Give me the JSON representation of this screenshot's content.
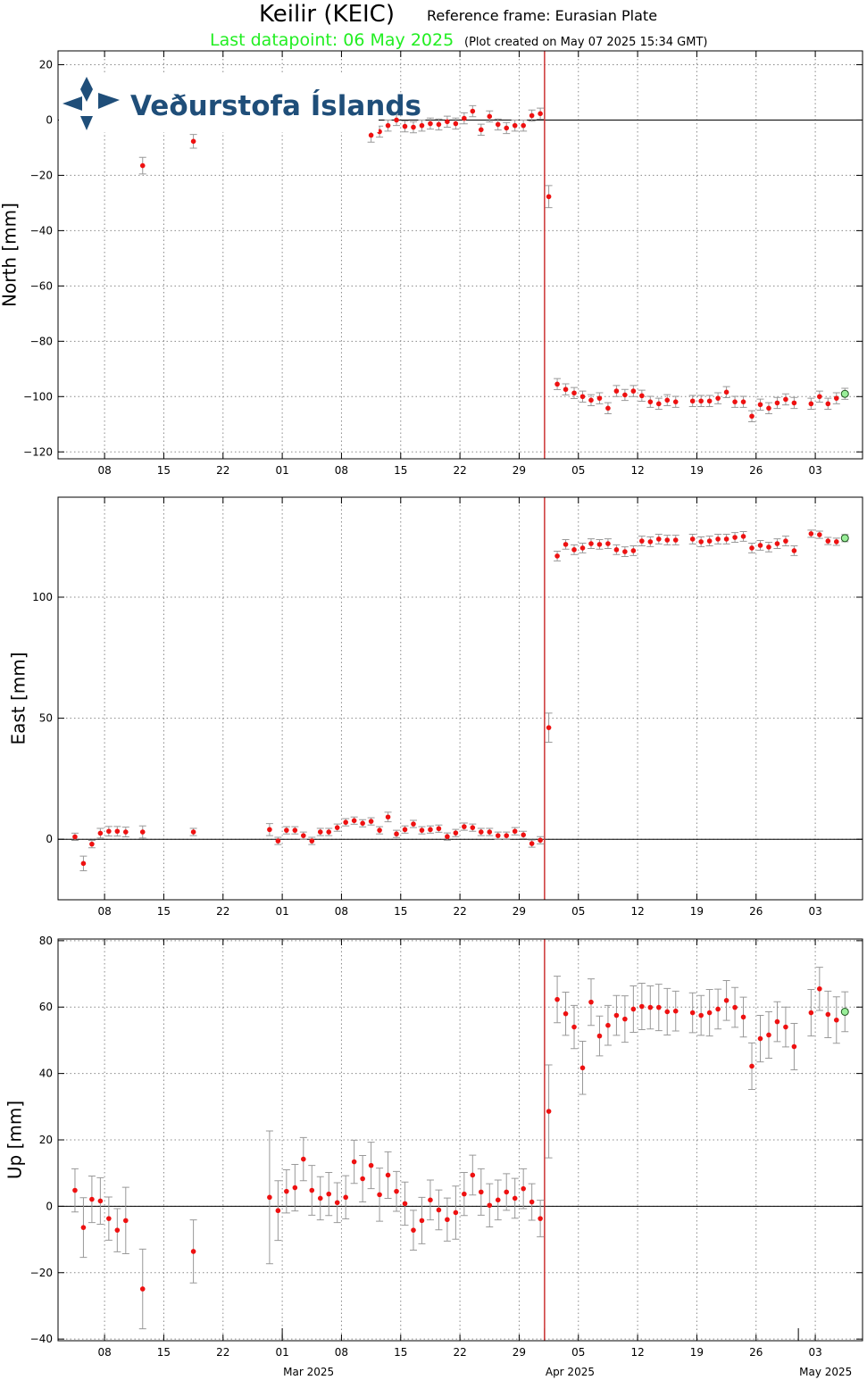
{
  "header": {
    "title": "Keilir (KEIC)",
    "subtitle": "Reference frame: Eurasian Plate",
    "last_datapoint": "Last datapoint: 06 May 2025",
    "created": "(Plot created on May 07 2025 15:34 GMT)",
    "logo": "Veðurstofa Íslands"
  },
  "chart_data": [
    {
      "type": "scatter",
      "ylabel": "North [mm]",
      "color": "#ee1111",
      "last_color": "#99ee99",
      "error_color": "#999999",
      "grid": true,
      "zero_line": true,
      "event_line": {
        "x": "2025-04-01",
        "color": "#cc3333"
      },
      "xlim": [
        "2025-02-02T12:00",
        "2025-05-08T14:00"
      ],
      "ylim": [
        -122.5,
        25
      ],
      "yticks": [
        {
          "value": -120,
          "label": "−120"
        },
        {
          "value": -100,
          "label": "−100"
        },
        {
          "value": -80,
          "label": "−80"
        },
        {
          "value": -60,
          "label": "−60"
        },
        {
          "value": -40,
          "label": "−40"
        },
        {
          "value": -20,
          "label": "−20"
        },
        0,
        20
      ],
      "xticks": [
        {
          "value": "2025-02-08",
          "label": "08"
        },
        {
          "value": "2025-02-15",
          "label": "15"
        },
        {
          "value": "2025-02-22",
          "label": "22"
        },
        {
          "value": "2025-03-01",
          "label": "01"
        },
        {
          "value": "2025-03-08",
          "label": "08"
        },
        {
          "value": "2025-03-15",
          "label": "15"
        },
        {
          "value": "2025-03-22",
          "label": "22"
        },
        {
          "value": "2025-03-29",
          "label": "29"
        },
        {
          "value": "2025-04-05",
          "label": "05"
        },
        {
          "value": "2025-04-12",
          "label": "12"
        },
        {
          "value": "2025-04-19",
          "label": "19"
        },
        {
          "value": "2025-04-26",
          "label": "26"
        },
        {
          "value": "2025-05-03",
          "label": "03"
        }
      ],
      "x": [
        "2025-02-12",
        "2025-02-18",
        "2025-03-11",
        "2025-03-12",
        "2025-03-13",
        "2025-03-14",
        "2025-03-15",
        "2025-03-16",
        "2025-03-17",
        "2025-03-18",
        "2025-03-19",
        "2025-03-20",
        "2025-03-21",
        "2025-03-22",
        "2025-03-23",
        "2025-03-24",
        "2025-03-25",
        "2025-03-26",
        "2025-03-27",
        "2025-03-28",
        "2025-03-29",
        "2025-03-30",
        "2025-03-31",
        "2025-04-01",
        "2025-04-02",
        "2025-04-03",
        "2025-04-04",
        "2025-04-05",
        "2025-04-06",
        "2025-04-07",
        "2025-04-08",
        "2025-04-09",
        "2025-04-10",
        "2025-04-11",
        "2025-04-12",
        "2025-04-13",
        "2025-04-14",
        "2025-04-15",
        "2025-04-16",
        "2025-04-18",
        "2025-04-19",
        "2025-04-20",
        "2025-04-21",
        "2025-04-22",
        "2025-04-23",
        "2025-04-24",
        "2025-04-25",
        "2025-04-26",
        "2025-04-27",
        "2025-04-28",
        "2025-04-29",
        "2025-04-30",
        "2025-05-02",
        "2025-05-03",
        "2025-05-04",
        "2025-05-05",
        "2025-05-06"
      ],
      "values": [
        -16.5,
        -7.7,
        -5.5,
        -4.2,
        -2,
        0,
        -2.3,
        -2.6,
        -2,
        -1.3,
        -1.6,
        -0.6,
        -1.3,
        0.6,
        3.2,
        -3.5,
        1.3,
        -1.6,
        -2.9,
        -2,
        -2,
        1.6,
        2.3,
        -27.7,
        -95.5,
        -97.4,
        -98.7,
        -100,
        -101.3,
        -100.6,
        -104.2,
        -98,
        -99.4,
        -98,
        -99.7,
        -101.9,
        -102.6,
        -101.3,
        -101.9,
        -101.6,
        -101.6,
        -101.6,
        -100.6,
        -98.4,
        -101.9,
        -101.9,
        -107.1,
        -102.9,
        -104.2,
        -102.3,
        -101,
        -102.3,
        -102.6,
        -100,
        -102.6,
        -100.6,
        -99
      ],
      "errors": [
        3,
        2.5,
        2.5,
        2,
        2,
        2,
        2,
        2,
        2,
        2,
        2,
        2,
        2,
        2,
        2,
        2,
        2,
        2,
        2,
        2,
        2,
        2,
        2,
        4,
        2,
        2,
        2,
        2,
        2,
        2,
        2,
        2,
        2,
        2,
        2,
        2,
        2,
        2,
        2,
        2,
        2,
        2,
        2,
        2,
        2,
        2,
        2,
        2,
        2,
        2,
        2,
        2,
        2,
        2,
        2,
        2,
        2
      ]
    },
    {
      "type": "scatter",
      "ylabel": "East [mm]",
      "color": "#ee1111",
      "last_color": "#99ee99",
      "error_color": "#999999",
      "grid": true,
      "zero_line": true,
      "event_line": {
        "x": "2025-04-01",
        "color": "#cc3333"
      },
      "xlim": [
        "2025-02-02T12:00",
        "2025-05-08T14:00"
      ],
      "ylim": [
        -25,
        141.3
      ],
      "yticks": [
        0,
        50,
        100
      ],
      "xticks": [
        {
          "value": "2025-02-08",
          "label": "08"
        },
        {
          "value": "2025-02-15",
          "label": "15"
        },
        {
          "value": "2025-02-22",
          "label": "22"
        },
        {
          "value": "2025-03-01",
          "label": "01"
        },
        {
          "value": "2025-03-08",
          "label": "08"
        },
        {
          "value": "2025-03-15",
          "label": "15"
        },
        {
          "value": "2025-03-22",
          "label": "22"
        },
        {
          "value": "2025-03-29",
          "label": "29"
        },
        {
          "value": "2025-04-05",
          "label": "05"
        },
        {
          "value": "2025-04-12",
          "label": "12"
        },
        {
          "value": "2025-04-19",
          "label": "19"
        },
        {
          "value": "2025-04-26",
          "label": "26"
        },
        {
          "value": "2025-05-03",
          "label": "03"
        }
      ],
      "x": [
        "2025-02-04",
        "2025-02-05",
        "2025-02-06",
        "2025-02-07",
        "2025-02-08",
        "2025-02-09",
        "2025-02-10",
        "2025-02-12",
        "2025-02-18",
        "2025-02-27",
        "2025-02-28",
        "2025-03-01",
        "2025-03-02",
        "2025-03-03",
        "2025-03-04",
        "2025-03-05",
        "2025-03-06",
        "2025-03-07",
        "2025-03-08",
        "2025-03-09",
        "2025-03-10",
        "2025-03-11",
        "2025-03-12",
        "2025-03-13",
        "2025-03-14",
        "2025-03-15",
        "2025-03-16",
        "2025-03-17",
        "2025-03-18",
        "2025-03-19",
        "2025-03-20",
        "2025-03-21",
        "2025-03-22",
        "2025-03-23",
        "2025-03-24",
        "2025-03-25",
        "2025-03-26",
        "2025-03-27",
        "2025-03-28",
        "2025-03-29",
        "2025-03-30",
        "2025-03-31",
        "2025-04-01",
        "2025-04-02",
        "2025-04-03",
        "2025-04-04",
        "2025-04-05",
        "2025-04-06",
        "2025-04-07",
        "2025-04-08",
        "2025-04-09",
        "2025-04-10",
        "2025-04-11",
        "2025-04-12",
        "2025-04-13",
        "2025-04-14",
        "2025-04-15",
        "2025-04-16",
        "2025-04-18",
        "2025-04-19",
        "2025-04-20",
        "2025-04-21",
        "2025-04-22",
        "2025-04-23",
        "2025-04-24",
        "2025-04-25",
        "2025-04-26",
        "2025-04-27",
        "2025-04-28",
        "2025-04-29",
        "2025-04-30",
        "2025-05-02",
        "2025-05-03",
        "2025-05-04",
        "2025-05-05",
        "2025-05-06"
      ],
      "values": [
        1,
        -10,
        -2,
        2.5,
        3.3,
        3.3,
        3,
        3,
        3,
        4,
        -0.7,
        3.7,
        3.7,
        1.5,
        -0.7,
        3,
        3,
        4.8,
        7,
        7.7,
        6.6,
        7.4,
        3.7,
        9.2,
        2.2,
        4,
        6.3,
        3.7,
        4,
        4.4,
        1.1,
        2.6,
        5.2,
        4.8,
        3,
        3,
        1.5,
        1.5,
        3.3,
        1.8,
        -1.8,
        -0.4,
        46.1,
        117,
        121.8,
        119.6,
        120.3,
        122.1,
        121.8,
        122.1,
        119.6,
        118.8,
        119.2,
        123.2,
        122.9,
        124,
        123.6,
        123.6,
        124,
        122.9,
        123.2,
        124,
        124,
        124.7,
        125.1,
        120.3,
        121.4,
        120.7,
        122.1,
        123.2,
        119.2,
        126.2,
        125.8,
        123.2,
        122.9,
        124.4
      ],
      "errors": [
        1.5,
        3,
        1.5,
        2,
        2,
        2,
        2,
        2.5,
        1.5,
        2.5,
        1.5,
        1.5,
        1.5,
        1.5,
        1.5,
        1.5,
        1.5,
        1.5,
        1.5,
        1.5,
        1.5,
        1.5,
        1.5,
        2,
        1.5,
        1.5,
        1.5,
        1.5,
        1.5,
        1.5,
        1.5,
        1.5,
        1.5,
        1.5,
        1.5,
        1.5,
        1.5,
        1.5,
        1.5,
        1.5,
        1.5,
        1.5,
        6,
        2,
        2,
        2,
        2,
        2,
        2,
        2,
        2,
        2,
        2,
        2,
        2,
        2,
        2,
        2,
        2,
        2,
        2,
        2,
        2,
        2,
        2,
        2,
        2,
        2,
        2,
        2,
        2,
        1.5,
        1.5,
        1.5,
        1.5,
        1.5
      ]
    },
    {
      "type": "scatter",
      "ylabel": "Up [mm]",
      "color": "#ee1111",
      "last_color": "#99ee99",
      "error_color": "#999999",
      "grid": true,
      "zero_line": true,
      "event_line": {
        "x": "2025-04-01",
        "color": "#cc3333"
      },
      "xlim": [
        "2025-02-02T12:00",
        "2025-05-08T14:00"
      ],
      "ylim": [
        -40.5,
        80.5
      ],
      "yticks": [
        {
          "value": -40,
          "label": "−40"
        },
        {
          "value": -20,
          "label": "−20"
        },
        0,
        20,
        40,
        60,
        80
      ],
      "xticks": [
        {
          "value": "2025-02-08",
          "label": "08"
        },
        {
          "value": "2025-02-15",
          "label": "15"
        },
        {
          "value": "2025-02-22",
          "label": "22"
        },
        {
          "value": "2025-03-01",
          "label": "01"
        },
        {
          "value": "2025-03-08",
          "label": "08"
        },
        {
          "value": "2025-03-15",
          "label": "15"
        },
        {
          "value": "2025-03-22",
          "label": "22"
        },
        {
          "value": "2025-03-29",
          "label": "29"
        },
        {
          "value": "2025-04-05",
          "label": "05"
        },
        {
          "value": "2025-04-12",
          "label": "12"
        },
        {
          "value": "2025-04-19",
          "label": "19"
        },
        {
          "value": "2025-04-26",
          "label": "26"
        },
        {
          "value": "2025-05-03",
          "label": "03"
        }
      ],
      "month_ticks": [
        {
          "value": "2025-03-01",
          "label": "Mar 2025"
        },
        {
          "value": "2025-04-01",
          "label": "Apr 2025"
        },
        {
          "value": "2025-05-01",
          "label": "May 2025"
        }
      ],
      "x": [
        "2025-02-04",
        "2025-02-05",
        "2025-02-06",
        "2025-02-07",
        "2025-02-08",
        "2025-02-09",
        "2025-02-10",
        "2025-02-12",
        "2025-02-18",
        "2025-02-27",
        "2025-02-28",
        "2025-03-01",
        "2025-03-02",
        "2025-03-03",
        "2025-03-04",
        "2025-03-05",
        "2025-03-06",
        "2025-03-07",
        "2025-03-08",
        "2025-03-09",
        "2025-03-10",
        "2025-03-11",
        "2025-03-12",
        "2025-03-13",
        "2025-03-14",
        "2025-03-15",
        "2025-03-16",
        "2025-03-17",
        "2025-03-18",
        "2025-03-19",
        "2025-03-20",
        "2025-03-21",
        "2025-03-22",
        "2025-03-23",
        "2025-03-24",
        "2025-03-25",
        "2025-03-26",
        "2025-03-27",
        "2025-03-28",
        "2025-03-29",
        "2025-03-30",
        "2025-03-31",
        "2025-04-01",
        "2025-04-02",
        "2025-04-03",
        "2025-04-04",
        "2025-04-05",
        "2025-04-06",
        "2025-04-07",
        "2025-04-08",
        "2025-04-09",
        "2025-04-10",
        "2025-04-11",
        "2025-04-12",
        "2025-04-13",
        "2025-04-14",
        "2025-04-15",
        "2025-04-16",
        "2025-04-18",
        "2025-04-19",
        "2025-04-20",
        "2025-04-21",
        "2025-04-22",
        "2025-04-23",
        "2025-04-24",
        "2025-04-25",
        "2025-04-26",
        "2025-04-27",
        "2025-04-28",
        "2025-04-29",
        "2025-04-30",
        "2025-05-02",
        "2025-05-03",
        "2025-05-04",
        "2025-05-05",
        "2025-05-06"
      ],
      "values": [
        4.8,
        -6.4,
        2.1,
        1.6,
        -3.7,
        -7.2,
        -4.3,
        -24.9,
        -13.6,
        2.7,
        -1.3,
        4.5,
        5.6,
        14.2,
        4.8,
        2.4,
        3.7,
        1.1,
        2.7,
        13.4,
        8.3,
        12.3,
        3.5,
        9.4,
        4.5,
        0.8,
        -7.2,
        -4.3,
        1.9,
        -1.1,
        -4,
        -1.9,
        3.7,
        9.4,
        4.3,
        0.3,
        1.9,
        4.3,
        2.4,
        5.3,
        1.3,
        -3.7,
        28.6,
        62.3,
        58,
        54,
        41.7,
        61.5,
        51.3,
        54.5,
        57.5,
        56.4,
        59.4,
        60.2,
        59.9,
        59.9,
        58.6,
        58.8,
        58.3,
        57.5,
        58.3,
        59.4,
        62,
        59.9,
        57,
        42.2,
        50.5,
        51.6,
        55.6,
        54,
        48.1,
        58.3,
        65.5,
        57.8,
        56.1,
        58.6
      ],
      "errors": [
        6.5,
        9,
        7,
        7,
        6.5,
        6.5,
        10,
        12,
        9.5,
        20,
        9,
        6.5,
        7,
        6.5,
        7.5,
        6.5,
        6.5,
        6,
        6.5,
        6.5,
        7,
        7,
        8,
        7,
        6,
        6.5,
        6,
        7,
        6,
        6,
        6.5,
        8,
        6.5,
        6,
        7,
        6.5,
        6,
        5.5,
        6,
        6,
        5.5,
        5.5,
        14,
        7,
        6.5,
        6.5,
        8,
        7,
        6,
        6,
        6,
        7,
        7,
        7,
        6.5,
        7,
        7,
        6,
        6,
        6,
        7,
        6,
        6,
        6,
        6,
        7,
        7,
        7,
        6,
        6,
        7,
        7,
        6.5,
        7,
        7,
        6
      ]
    }
  ]
}
